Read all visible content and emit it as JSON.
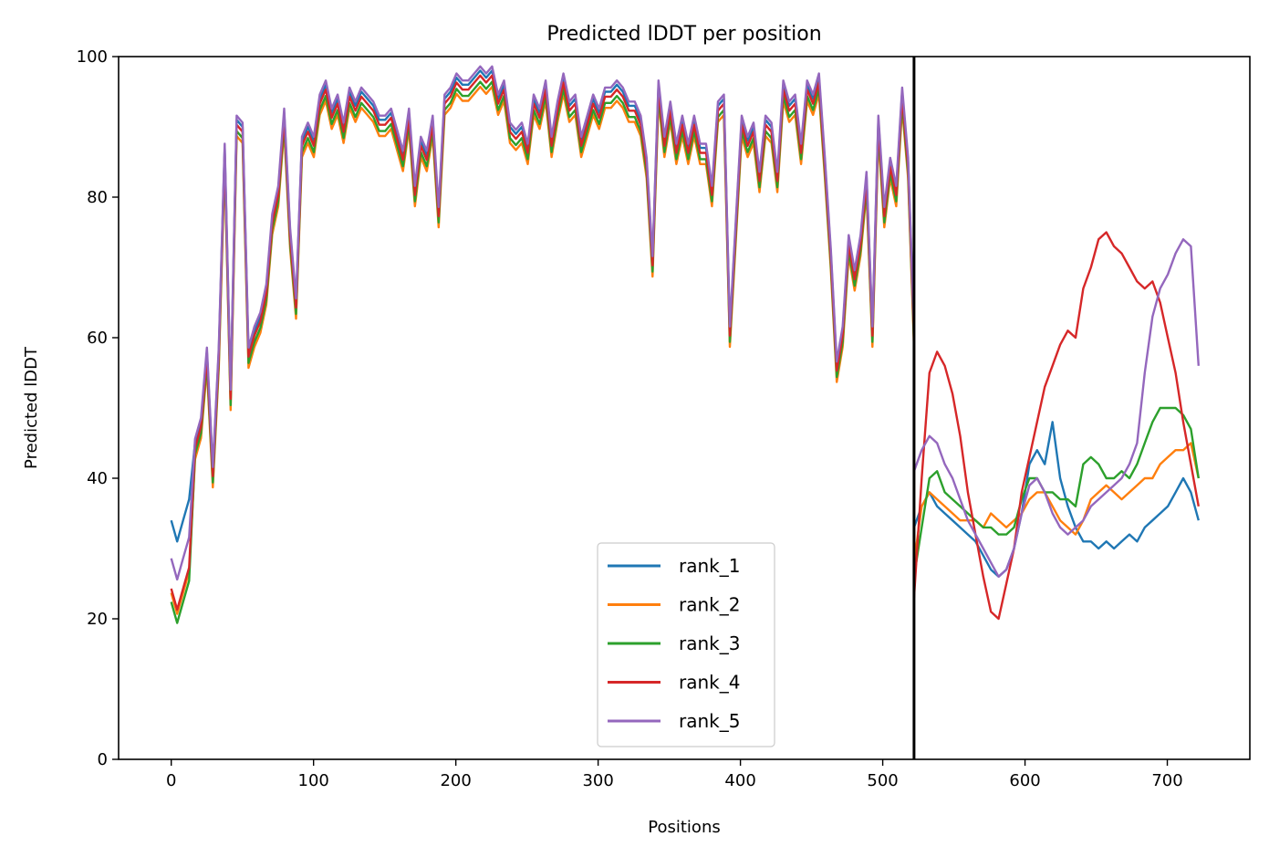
{
  "chart_data": {
    "type": "line",
    "title": "Predicted lDDT per position",
    "xlabel": "Positions",
    "ylabel": "Predicted lDDT",
    "xlim": [
      -37,
      758
    ],
    "ylim": [
      0,
      100
    ],
    "xticks": [
      0,
      100,
      200,
      300,
      400,
      500,
      600,
      700
    ],
    "yticks": [
      0,
      20,
      40,
      60,
      80,
      100
    ],
    "xtick_labels": [
      "0",
      "100",
      "200",
      "300",
      "400",
      "500",
      "600",
      "700"
    ],
    "ytick_labels": [
      "0",
      "20",
      "40",
      "60",
      "80",
      "100"
    ],
    "grid": false,
    "legend_position": "lower center",
    "vline_x": 522,
    "x_start": 0,
    "x_step": 10,
    "base_profile": [
      27,
      24,
      27,
      30,
      44,
      47,
      57,
      40,
      57,
      86,
      51,
      90,
      89,
      57,
      60,
      62,
      66,
      76,
      80,
      91,
      74,
      64,
      87,
      89,
      87,
      93,
      95,
      91,
      93,
      89,
      94,
      92,
      94,
      93,
      92,
      90,
      90,
      91,
      88,
      85,
      91,
      80,
      87,
      85,
      90,
      77,
      93,
      94,
      96,
      95,
      95,
      96,
      97,
      96,
      97,
      93,
      95,
      89,
      88,
      89,
      86,
      93,
      91,
      95,
      87,
      92,
      96,
      92,
      93,
      87,
      90,
      93,
      91,
      94,
      94,
      95,
      94,
      92,
      92,
      90,
      84,
      70,
      95,
      87,
      92,
      86,
      90,
      86,
      90,
      86,
      86,
      80,
      92,
      93,
      60,
      75,
      90,
      87,
      89,
      82,
      90,
      89,
      82,
      95,
      92,
      93,
      86,
      95,
      93,
      96,
      84,
      71,
      55,
      60,
      73,
      68,
      73,
      82,
      60,
      90,
      77,
      84,
      80,
      94,
      84,
      60
    ],
    "series": [
      {
        "name": "rank_1",
        "color": "#1f77b4",
        "tail": [
          33,
          36,
          38,
          36,
          35,
          34,
          33,
          32,
          31,
          29,
          27,
          26,
          27,
          30,
          35,
          42,
          44,
          42,
          48,
          40,
          36,
          33,
          31,
          31,
          30,
          31,
          30,
          31,
          32,
          31,
          33,
          34,
          35,
          36,
          38,
          40,
          38,
          34
        ]
      },
      {
        "name": "rank_2",
        "color": "#ff7f0e",
        "tail": [
          28,
          36,
          38,
          37,
          36,
          35,
          34,
          34,
          34,
          33,
          35,
          34,
          33,
          34,
          35,
          37,
          38,
          38,
          36,
          34,
          33,
          32,
          34,
          37,
          38,
          39,
          38,
          37,
          38,
          39,
          40,
          40,
          42,
          43,
          44,
          44,
          45,
          40
        ]
      },
      {
        "name": "rank_3",
        "color": "#2ca02c",
        "tail": [
          26,
          33,
          40,
          41,
          38,
          37,
          36,
          35,
          34,
          33,
          33,
          32,
          32,
          33,
          37,
          40,
          40,
          38,
          38,
          37,
          37,
          36,
          42,
          43,
          42,
          40,
          40,
          41,
          40,
          42,
          45,
          48,
          50,
          50,
          50,
          49,
          47,
          40
        ]
      },
      {
        "name": "rank_4",
        "color": "#d62728",
        "tail": [
          23,
          40,
          55,
          58,
          56,
          52,
          46,
          38,
          32,
          26,
          21,
          20,
          25,
          30,
          38,
          43,
          48,
          53,
          56,
          59,
          61,
          60,
          67,
          70,
          74,
          75,
          73,
          72,
          70,
          68,
          67,
          68,
          65,
          60,
          55,
          48,
          42,
          36
        ]
      },
      {
        "name": "rank_5",
        "color": "#9467bd",
        "tail": [
          41,
          44,
          46,
          45,
          42,
          40,
          37,
          34,
          32,
          30,
          28,
          26,
          27,
          30,
          35,
          39,
          40,
          38,
          35,
          33,
          32,
          33,
          34,
          36,
          37,
          38,
          39,
          40,
          42,
          45,
          55,
          63,
          67,
          69,
          72,
          74,
          73,
          56
        ]
      }
    ]
  }
}
